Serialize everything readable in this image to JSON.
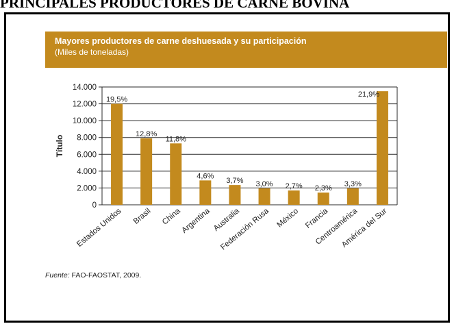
{
  "page_heading": "PRINCIPALES PRODUCTORES DE CARNE BOVINA",
  "header": {
    "title": "Mayores productores de carne deshuesada y su participación",
    "subtitle": "(Miles de toneladas)"
  },
  "source": {
    "label": "Fuente:",
    "text": " FAO-FAOSTAT, 2009."
  },
  "colors": {
    "header_bg": "#c38a1e",
    "bar": "#c38a1e",
    "grid": "#2a2a2a",
    "text": "#222222"
  },
  "chart_data": {
    "type": "bar",
    "ylabel": "Título",
    "xlabel": "",
    "ylim": [
      0,
      14000
    ],
    "yticks": [
      0,
      2000,
      4000,
      6000,
      8000,
      10000,
      12000,
      14000
    ],
    "ytick_labels": [
      "0",
      "2.000",
      "4.000",
      "6.000",
      "8.000",
      "10.000",
      "12.000",
      "14.000"
    ],
    "grid": true,
    "categories": [
      "Estados Unidos",
      "Brasil",
      "China",
      "Argentina",
      "Australia",
      "Federación Rusa",
      "México",
      "Francia",
      "Centroamérica",
      "América del Sur"
    ],
    "values": [
      12000,
      7900,
      7300,
      2900,
      2350,
      1950,
      1700,
      1450,
      1950,
      13500
    ],
    "data_labels": [
      "19,5%",
      "12,8%",
      "11,8%",
      "4,6%",
      "3,7%",
      "3,0%",
      "2,7%",
      "2,3%",
      "3,3%",
      "21,9%"
    ]
  }
}
